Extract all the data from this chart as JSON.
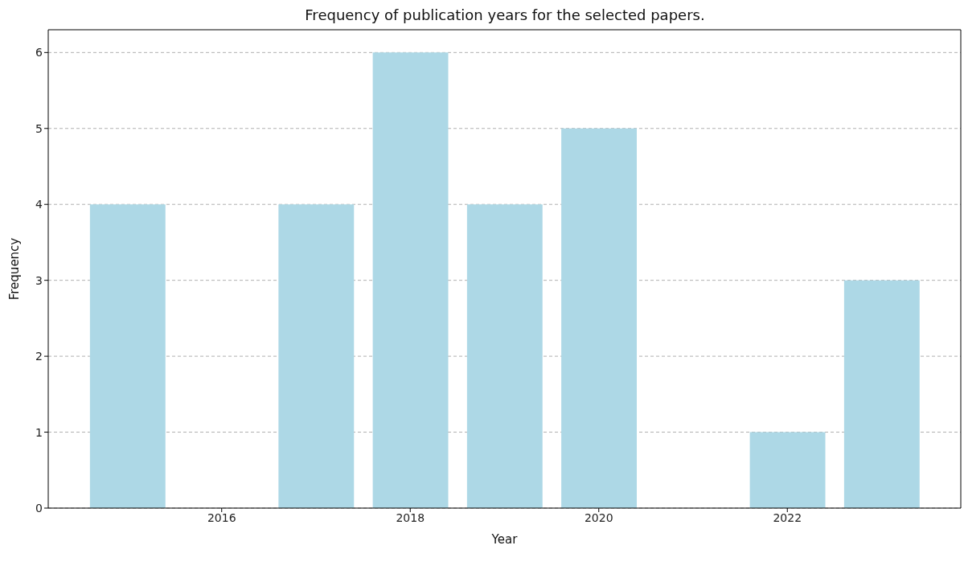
{
  "chart_data": {
    "type": "bar",
    "title": "Frequency of publication years for the selected papers.",
    "xlabel": "Year",
    "ylabel": "Frequency",
    "x": [
      2015,
      2017,
      2018,
      2019,
      2020,
      2022,
      2023
    ],
    "values": [
      4,
      4,
      6,
      4,
      5,
      1,
      3
    ],
    "color": "#add8e6",
    "xlim": [
      2014.16,
      2023.84
    ],
    "xticks": [
      2016,
      2018,
      2020,
      2022
    ],
    "ylim": [
      0,
      6.3
    ],
    "yticks": [
      0,
      1,
      2,
      3,
      4,
      5,
      6
    ],
    "grid": "y"
  }
}
